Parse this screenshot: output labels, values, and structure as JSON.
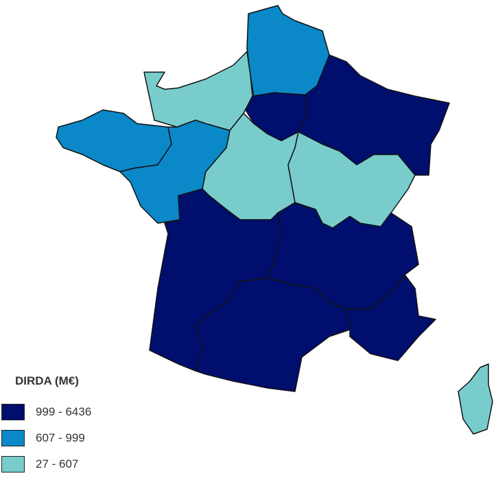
{
  "legend": {
    "title": "DIRDA (M€)",
    "classes": [
      {
        "label": "999 - 6436",
        "color": "#000f6e"
      },
      {
        "label": "607 - 999",
        "color": "#0a88c8"
      },
      {
        "label": "27 - 607",
        "color": "#78cccc"
      }
    ]
  },
  "regions": [
    {
      "name": "Hauts-de-France",
      "class": 1
    },
    {
      "name": "Normandie",
      "class": 2
    },
    {
      "name": "Île-de-France",
      "class": 0
    },
    {
      "name": "Grand Est",
      "class": 0
    },
    {
      "name": "Bretagne",
      "class": 1
    },
    {
      "name": "Pays de la Loire",
      "class": 1
    },
    {
      "name": "Centre-Val de Loire",
      "class": 2
    },
    {
      "name": "Bourgogne-Franche-Comté",
      "class": 2
    },
    {
      "name": "Nouvelle-Aquitaine",
      "class": 0
    },
    {
      "name": "Auvergne-Rhône-Alpes",
      "class": 0
    },
    {
      "name": "Occitanie",
      "class": 0
    },
    {
      "name": "Provence-Alpes-Côte d'Azur",
      "class": 0
    },
    {
      "name": "Corse",
      "class": 2
    }
  ]
}
